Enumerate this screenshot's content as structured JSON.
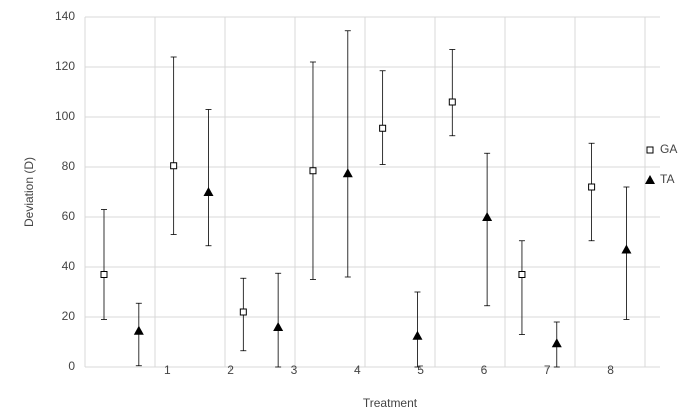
{
  "chart_data": {
    "type": "scatter",
    "x_label": "Treatment",
    "y_label": "Deviation (D)",
    "xlim": [
      -0.3,
      8.78
    ],
    "xticks": [
      1,
      2,
      3,
      4,
      5,
      6,
      7,
      8
    ],
    "ylim": [
      0,
      140
    ],
    "yticks": [
      0,
      20,
      40,
      60,
      80,
      100,
      120,
      140
    ],
    "grid": true,
    "legend": "right",
    "series": [
      {
        "name": "GA",
        "marker": "square",
        "color": "#000000",
        "x": [
          0,
          1.1,
          2.2,
          3.3,
          4.4,
          5.5,
          6.6,
          7.7
        ],
        "values": [
          37,
          80.5,
          22,
          78.5,
          95.5,
          106,
          37,
          72
        ],
        "low": [
          19,
          53,
          6.5,
          35,
          81,
          92.5,
          13,
          50.5
        ],
        "high": [
          63,
          124,
          35.5,
          122,
          118.5,
          127,
          50.5,
          89.5
        ]
      },
      {
        "name": "TA",
        "marker": "triangle",
        "color": "#000000",
        "x": [
          0.55,
          1.65,
          2.75,
          3.85,
          4.95,
          6.05,
          7.15,
          8.25
        ],
        "values": [
          14.5,
          70,
          16,
          77.5,
          12.5,
          60,
          9.5,
          47
        ],
        "low": [
          0.5,
          48.5,
          0,
          36,
          0,
          24.5,
          0,
          19
        ],
        "high": [
          25.5,
          103,
          37.5,
          134.5,
          30,
          85.5,
          18,
          72
        ]
      }
    ]
  }
}
